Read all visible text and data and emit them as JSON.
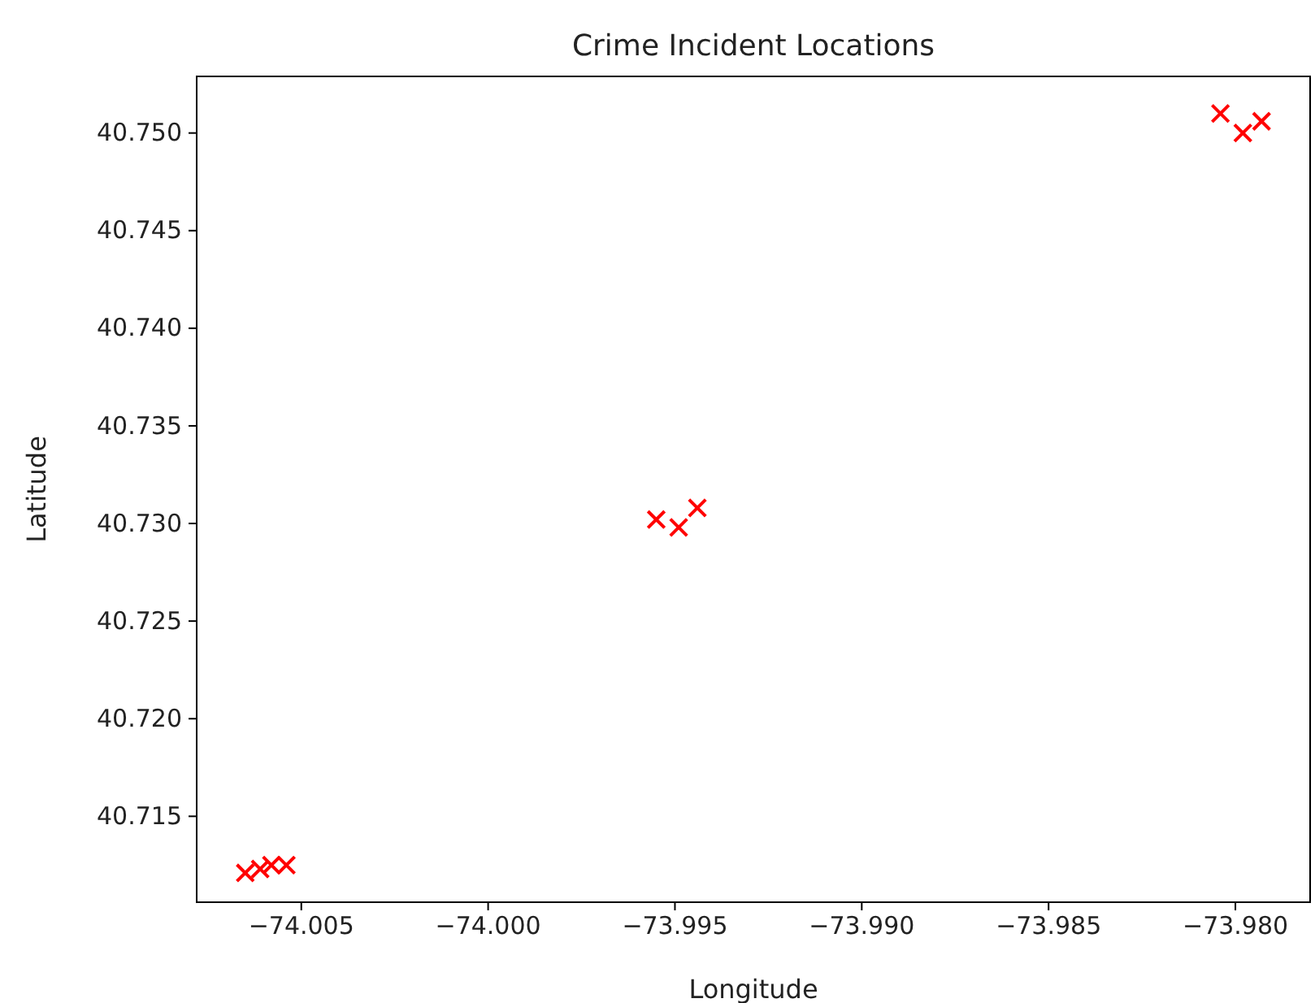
{
  "chart_data": {
    "type": "scatter",
    "title": "Crime Incident Locations",
    "xlabel": "Longitude",
    "ylabel": "Latitude",
    "x": [
      -74.0065,
      -74.0061,
      -74.0058,
      -74.0054,
      -73.9955,
      -73.9949,
      -73.9944,
      -73.9804,
      -73.9798,
      -73.9793
    ],
    "values": [
      40.7121,
      40.7123,
      40.7125,
      40.7125,
      40.7302,
      40.7298,
      40.7308,
      40.751,
      40.75,
      40.7506
    ],
    "color": "#ff0000",
    "marker": "cross",
    "xlim": [
      -74.0078,
      -73.978
    ],
    "ylim": [
      40.7106,
      40.7529
    ],
    "xticks": [
      {
        "value": -74.005,
        "label": "−74.005"
      },
      {
        "value": -74.0,
        "label": "−74.000"
      },
      {
        "value": -73.995,
        "label": "−73.995"
      },
      {
        "value": -73.99,
        "label": "−73.990"
      },
      {
        "value": -73.985,
        "label": "−73.985"
      },
      {
        "value": -73.98,
        "label": "−73.980"
      }
    ],
    "yticks": [
      {
        "value": 40.715,
        "label": "40.715"
      },
      {
        "value": 40.72,
        "label": "40.720"
      },
      {
        "value": 40.725,
        "label": "40.725"
      },
      {
        "value": 40.73,
        "label": "40.730"
      },
      {
        "value": 40.735,
        "label": "40.735"
      },
      {
        "value": 40.74,
        "label": "40.740"
      },
      {
        "value": 40.745,
        "label": "40.745"
      },
      {
        "value": 40.75,
        "label": "40.750"
      }
    ]
  }
}
